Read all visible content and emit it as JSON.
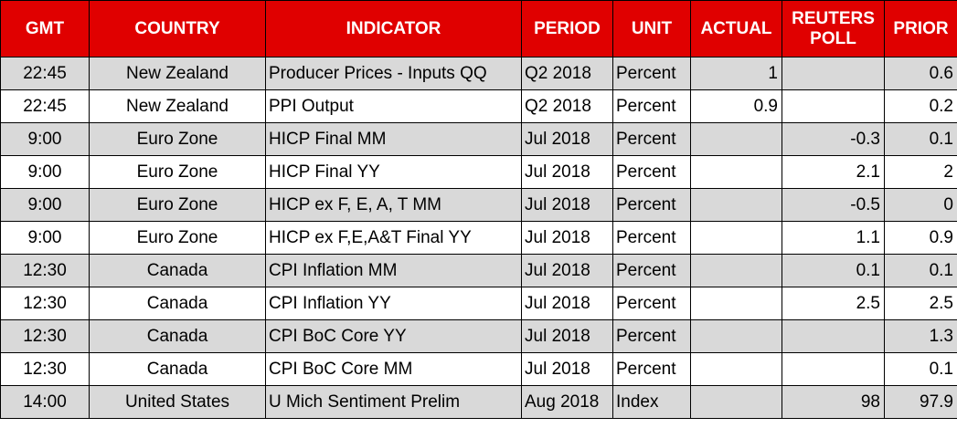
{
  "table": {
    "header": [
      "GMT",
      "COUNTRY",
      "INDICATOR",
      "PERIOD",
      "UNIT",
      "ACTUAL",
      "REUTERS POLL",
      "PRIOR"
    ],
    "rows": [
      [
        "22:45",
        "New Zealand",
        "Producer Prices - Inputs QQ",
        "Q2 2018",
        "Percent",
        "1",
        null,
        "0.6"
      ],
      [
        "22:45",
        "New Zealand",
        "PPI Output",
        "Q2 2018",
        "Percent",
        "0.9",
        null,
        "0.2"
      ],
      [
        "9:00",
        "Euro Zone",
        "HICP Final MM",
        "Jul 2018",
        "Percent",
        null,
        "-0.3",
        "0.1"
      ],
      [
        "9:00",
        "Euro Zone",
        "HICP Final YY",
        "Jul 2018",
        "Percent",
        null,
        "2.1",
        "2"
      ],
      [
        "9:00",
        "Euro Zone",
        "HICP ex F, E, A, T MM",
        "Jul 2018",
        "Percent",
        null,
        "-0.5",
        "0"
      ],
      [
        "9:00",
        "Euro Zone",
        "HICP ex F,E,A&T Final YY",
        "Jul 2018",
        "Percent",
        null,
        "1.1",
        "0.9"
      ],
      [
        "12:30",
        "Canada",
        "CPI Inflation MM",
        "Jul 2018",
        "Percent",
        null,
        "0.1",
        "0.1"
      ],
      [
        "12:30",
        "Canada",
        "CPI Inflation YY",
        "Jul 2018",
        "Percent",
        null,
        "2.5",
        "2.5"
      ],
      [
        "12:30",
        "Canada",
        "CPI BoC Core YY",
        "Jul 2018",
        "Percent",
        null,
        null,
        "1.3"
      ],
      [
        "12:30",
        "Canada",
        "CPI BoC Core MM",
        "Jul 2018",
        "Percent",
        null,
        null,
        "0.1"
      ],
      [
        "14:00",
        "United States",
        "U Mich Sentiment Prelim",
        "Aug 2018",
        "Index",
        null,
        "98",
        "97.9"
      ]
    ]
  }
}
